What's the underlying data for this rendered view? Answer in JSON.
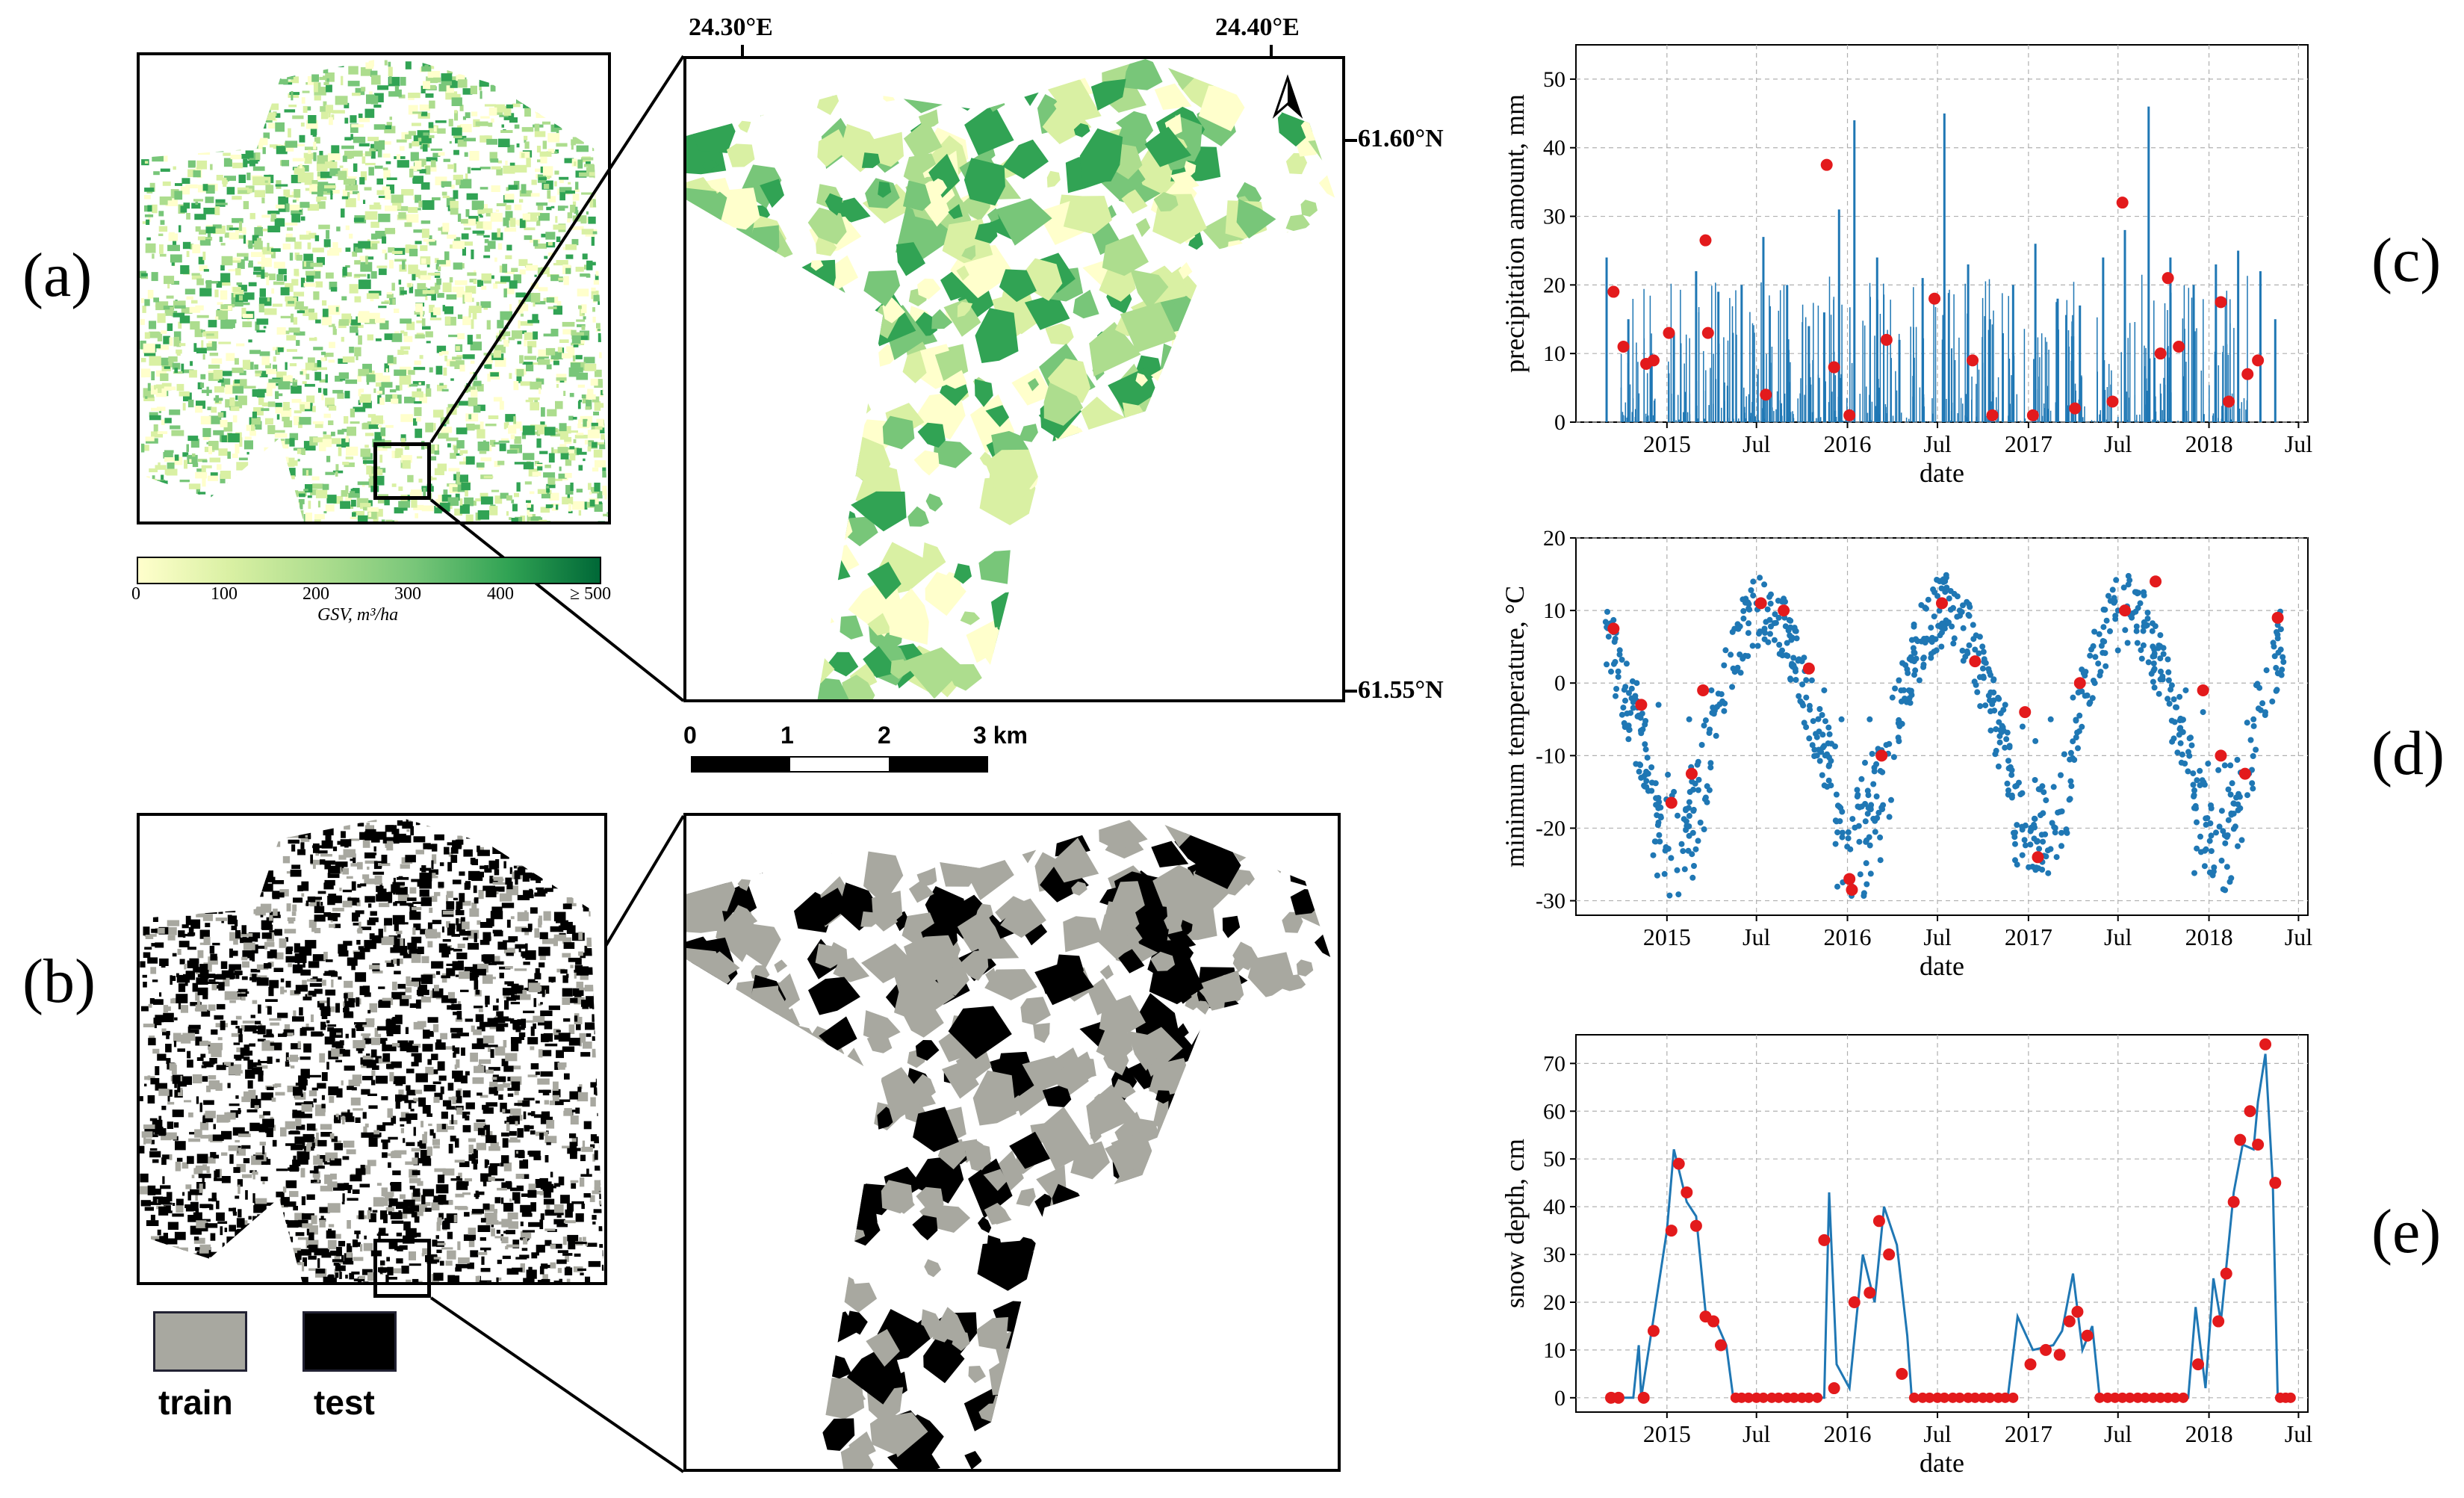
{
  "panel_labels": {
    "a": "(a)",
    "b": "(b)",
    "c": "(c)",
    "d": "(d)",
    "e": "(e)"
  },
  "map": {
    "lon_left": "24.30°E",
    "lon_right": "24.40°E",
    "lat_top": "61.60°N",
    "lat_bottom": "61.55°N",
    "scale_labels": [
      "0",
      "1",
      "2",
      "3 km"
    ],
    "colorbar": {
      "ticks": [
        "0",
        "100",
        "200",
        "300",
        "400",
        "≥ 500"
      ],
      "label": "GSV, m³/ha",
      "colors": [
        "#ffffcc",
        "#d9f0a3",
        "#addd8e",
        "#78c679",
        "#31a354",
        "#006837"
      ]
    },
    "legend": {
      "train": "train",
      "test": "test",
      "train_color": "#a8a8a0",
      "test_color": "#000000"
    }
  },
  "chart_data": [
    {
      "type": "line",
      "panel": "(c)",
      "xlabel": "date",
      "ylabel": "precipitation amount, mm",
      "ylim": [
        0,
        55
      ],
      "yticks": [
        0,
        10,
        20,
        30,
        40,
        50
      ],
      "xticks": [
        "2015",
        "Jul",
        "2016",
        "Jul",
        "2017",
        "Jul",
        "2018",
        "Jul"
      ],
      "grid": true,
      "line_color": "#1f77b4",
      "marker_color": "#e31a1c",
      "series": [
        {
          "x": [
            "2014-09-01",
            "2014-10-15",
            "2014-12-01",
            "2015-01-15",
            "2015-03-01",
            "2015-04-15",
            "2015-06-01",
            "2015-07-15",
            "2015-09-01",
            "2015-10-15",
            "2015-11-15",
            "2015-12-15",
            "2016-01-15",
            "2016-03-01",
            "2016-04-15",
            "2016-06-01",
            "2016-07-15",
            "2016-09-01",
            "2016-10-15",
            "2016-12-01",
            "2017-01-15",
            "2017-03-01",
            "2017-04-15",
            "2017-06-01",
            "2017-07-15",
            "2017-09-01",
            "2017-10-15",
            "2017-12-01",
            "2018-01-15",
            "2018-03-01",
            "2018-04-15",
            "2018-05-15"
          ],
          "values": [
            24,
            15,
            10,
            13,
            22,
            19,
            20,
            27,
            20,
            14,
            16,
            31,
            44,
            24,
            12,
            21,
            45,
            23,
            15,
            20,
            26,
            18,
            17,
            24,
            28,
            46,
            24,
            20,
            23,
            25,
            22,
            15
          ]
        }
      ],
      "markers": {
        "x": [
          "2014-09-15",
          "2014-10-05",
          "2014-11-20",
          "2014-12-05",
          "2015-01-05",
          "2015-03-20",
          "2015-03-25",
          "2015-07-20",
          "2015-11-20",
          "2015-12-05",
          "2016-01-05",
          "2016-03-20",
          "2016-06-25",
          "2016-09-10",
          "2016-10-20",
          "2017-01-10",
          "2017-04-05",
          "2017-06-20",
          "2017-07-10",
          "2017-09-25",
          "2017-10-10",
          "2017-11-01",
          "2018-01-25",
          "2018-02-10",
          "2018-03-20",
          "2018-04-10"
        ],
        "values": [
          19,
          11,
          8.5,
          9,
          13,
          26.5,
          13,
          4,
          37.5,
          8,
          1,
          12,
          18,
          9,
          1,
          1,
          2,
          3,
          32,
          10,
          21,
          11,
          17.5,
          3,
          7,
          9
        ]
      }
    },
    {
      "type": "scatter",
      "panel": "(d)",
      "xlabel": "date",
      "ylabel": "minimum temperature, °C",
      "ylim": [
        -32,
        20
      ],
      "yticks": [
        -30,
        -20,
        -10,
        0,
        10,
        20
      ],
      "xticks": [
        "2015",
        "Jul",
        "2016",
        "Jul",
        "2017",
        "Jul",
        "2018",
        "Jul"
      ],
      "grid": true,
      "point_color": "#1f77b4",
      "marker_color": "#e31a1c",
      "series": [
        {
          "name": "",
          "x": [
            "2014-09-15",
            "2014-11-01",
            "2014-12-15",
            "2015-01-15",
            "2015-02-15",
            "2015-04-01",
            "2015-05-15",
            "2015-07-01",
            "2015-08-15",
            "2015-10-01",
            "2015-11-15",
            "2015-12-20",
            "2016-01-10",
            "2016-02-15",
            "2016-04-01",
            "2016-05-15",
            "2016-07-01",
            "2016-08-15",
            "2016-10-01",
            "2016-11-15",
            "2016-12-20",
            "2017-01-15",
            "2017-02-15",
            "2017-04-01",
            "2017-05-15",
            "2017-07-01",
            "2017-08-15",
            "2017-10-01",
            "2017-11-15",
            "2017-12-20",
            "2018-01-20",
            "2018-02-20",
            "2018-04-01",
            "2018-05-20"
          ],
          "values": [
            7,
            0,
            -3,
            -15,
            -5,
            -1,
            2,
            11,
            9,
            3,
            -1,
            -5,
            -28,
            -5,
            -2,
            3,
            12,
            10,
            2,
            -3,
            -6,
            -8,
            -5,
            -2,
            0,
            10,
            11,
            4,
            -1,
            -4,
            -12,
            -18,
            -5,
            8
          ]
        }
      ],
      "markers": {
        "x": [
          "2014-09-15",
          "2014-11-10",
          "2015-01-10",
          "2015-02-20",
          "2015-03-15",
          "2015-07-10",
          "2015-08-25",
          "2015-10-15",
          "2016-01-05",
          "2016-01-10",
          "2016-03-10",
          "2016-07-10",
          "2016-09-15",
          "2016-12-25",
          "2017-01-20",
          "2017-04-15",
          "2017-07-15",
          "2017-09-15",
          "2017-12-20",
          "2018-01-25",
          "2018-03-15",
          "2018-05-20"
        ],
        "values": [
          7.5,
          -3,
          -16.5,
          -12.5,
          -1,
          11,
          10,
          2,
          -27,
          -28.5,
          -10,
          11,
          3,
          -4,
          -24,
          0,
          10,
          14,
          -1,
          -10,
          -12.5,
          9
        ]
      }
    },
    {
      "type": "line",
      "panel": "(e)",
      "xlabel": "date",
      "ylabel": "snow depth, cm",
      "ylim": [
        -3,
        76
      ],
      "yticks": [
        0,
        10,
        20,
        30,
        40,
        50,
        60,
        70
      ],
      "xticks": [
        "2015",
        "Jul",
        "2016",
        "Jul",
        "2017",
        "Jul",
        "2018",
        "Jul"
      ],
      "grid": true,
      "line_color": "#1f77b4",
      "marker_color": "#e31a1c",
      "series": [
        {
          "name": "",
          "x": [
            "2014-09-15",
            "2014-10-25",
            "2014-11-05",
            "2014-11-10",
            "2014-12-01",
            "2015-01-01",
            "2015-01-15",
            "2015-02-10",
            "2015-03-01",
            "2015-03-20",
            "2015-04-10",
            "2015-05-01",
            "2015-05-15",
            "2015-11-15",
            "2015-11-25",
            "2015-12-10",
            "2016-01-05",
            "2016-02-01",
            "2016-02-25",
            "2016-03-15",
            "2016-04-10",
            "2016-05-01",
            "2016-05-10",
            "2016-11-20",
            "2016-12-10",
            "2017-01-10",
            "2017-02-20",
            "2017-03-10",
            "2017-04-01",
            "2017-04-20",
            "2017-05-10",
            "2017-05-25",
            "2017-11-20",
            "2017-12-05",
            "2017-12-25",
            "2018-01-10",
            "2018-01-25",
            "2018-02-20",
            "2018-03-10",
            "2018-04-01",
            "2018-04-10",
            "2018-04-25",
            "2018-05-10",
            "2018-05-20"
          ],
          "values": [
            0,
            0,
            11,
            0,
            14,
            35,
            52,
            41,
            38,
            18,
            16,
            11,
            0,
            0,
            43,
            7,
            2,
            30,
            20,
            40,
            32,
            13,
            0,
            0,
            17,
            10,
            11,
            14,
            26,
            10,
            15,
            0,
            0,
            19,
            2,
            25,
            16,
            43,
            53,
            52,
            62,
            72,
            45,
            0
          ]
        }
      ],
      "markers": {
        "x": [
          "2014-09-10",
          "2014-09-25",
          "2014-11-15",
          "2014-12-05",
          "2015-01-10",
          "2015-01-25",
          "2015-02-10",
          "2015-03-01",
          "2015-03-20",
          "2015-04-05",
          "2015-04-20",
          "2015-11-15",
          "2015-12-05",
          "2016-01-15",
          "2016-02-15",
          "2016-03-05",
          "2016-03-25",
          "2016-04-20",
          "2017-01-05",
          "2017-02-05",
          "2017-03-05",
          "2017-03-25",
          "2017-04-10",
          "2017-04-30",
          "2017-12-10",
          "2018-01-20",
          "2018-02-05",
          "2018-02-20",
          "2018-03-05",
          "2018-03-25",
          "2018-04-10",
          "2018-04-25",
          "2018-05-15"
        ],
        "values": [
          0,
          0,
          0,
          14,
          35,
          49,
          43,
          36,
          17,
          16,
          11,
          33,
          2,
          20,
          22,
          37,
          30,
          5,
          7,
          10,
          9,
          16,
          18,
          13,
          7,
          16,
          26,
          41,
          54,
          60,
          53,
          74,
          45
        ]
      },
      "zero_markers_x": [
        "2015-05-20",
        "2015-06-01",
        "2015-06-15",
        "2015-07-01",
        "2015-07-15",
        "2015-08-01",
        "2015-08-15",
        "2015-09-01",
        "2015-09-15",
        "2015-10-01",
        "2015-10-15",
        "2015-11-01",
        "2016-05-15",
        "2016-06-01",
        "2016-06-15",
        "2016-07-01",
        "2016-07-15",
        "2016-08-01",
        "2016-08-15",
        "2016-09-01",
        "2016-09-15",
        "2016-10-01",
        "2016-10-15",
        "2016-11-01",
        "2016-11-15",
        "2016-12-01",
        "2017-05-25",
        "2017-06-10",
        "2017-06-25",
        "2017-07-10",
        "2017-07-25",
        "2017-08-10",
        "2017-08-25",
        "2017-09-10",
        "2017-09-25",
        "2017-10-10",
        "2017-10-25",
        "2017-11-10",
        "2018-05-25",
        "2018-06-05",
        "2018-06-15"
      ]
    }
  ]
}
